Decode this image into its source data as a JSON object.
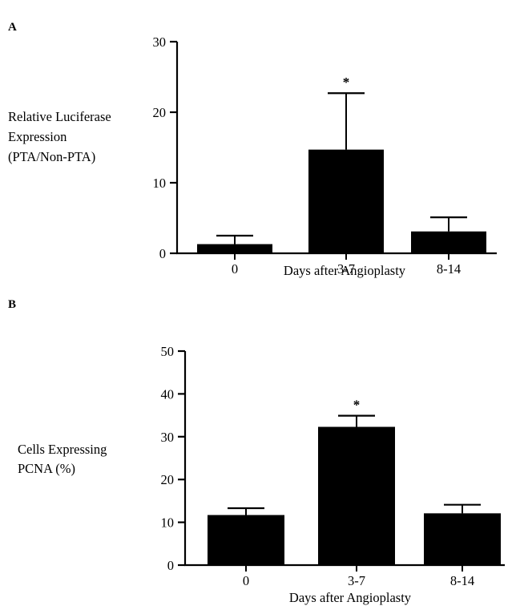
{
  "chart_data": [
    {
      "panel_label": "A",
      "type": "bar",
      "categories": [
        "0",
        "3-7",
        "8-14"
      ],
      "values": [
        1.3,
        14.7,
        3.1
      ],
      "error": [
        1.2,
        8.0,
        2.0
      ],
      "annotations": [
        "",
        "*",
        ""
      ],
      "ylabel_lines": [
        "Relative Luciferase",
        "Expression",
        "(PTA/Non-PTA)"
      ],
      "xlabel": "Days after Angioplasty",
      "ylim": [
        0,
        30
      ],
      "yticks": [
        0,
        10,
        20,
        30
      ],
      "grid": false,
      "bar_color": "#000000"
    },
    {
      "panel_label": "B",
      "type": "bar",
      "categories": [
        "0",
        "3-7",
        "8-14"
      ],
      "values": [
        11.7,
        32.3,
        12.1
      ],
      "error": [
        1.6,
        2.6,
        2.0
      ],
      "annotations": [
        "",
        "*",
        ""
      ],
      "ylabel_lines": [
        "Cells Expressing",
        "PCNA (%)"
      ],
      "xlabel": "Days after Angioplasty",
      "ylim": [
        0,
        50
      ],
      "yticks": [
        0,
        10,
        20,
        30,
        40,
        50
      ],
      "grid": false,
      "bar_color": "#000000"
    }
  ]
}
